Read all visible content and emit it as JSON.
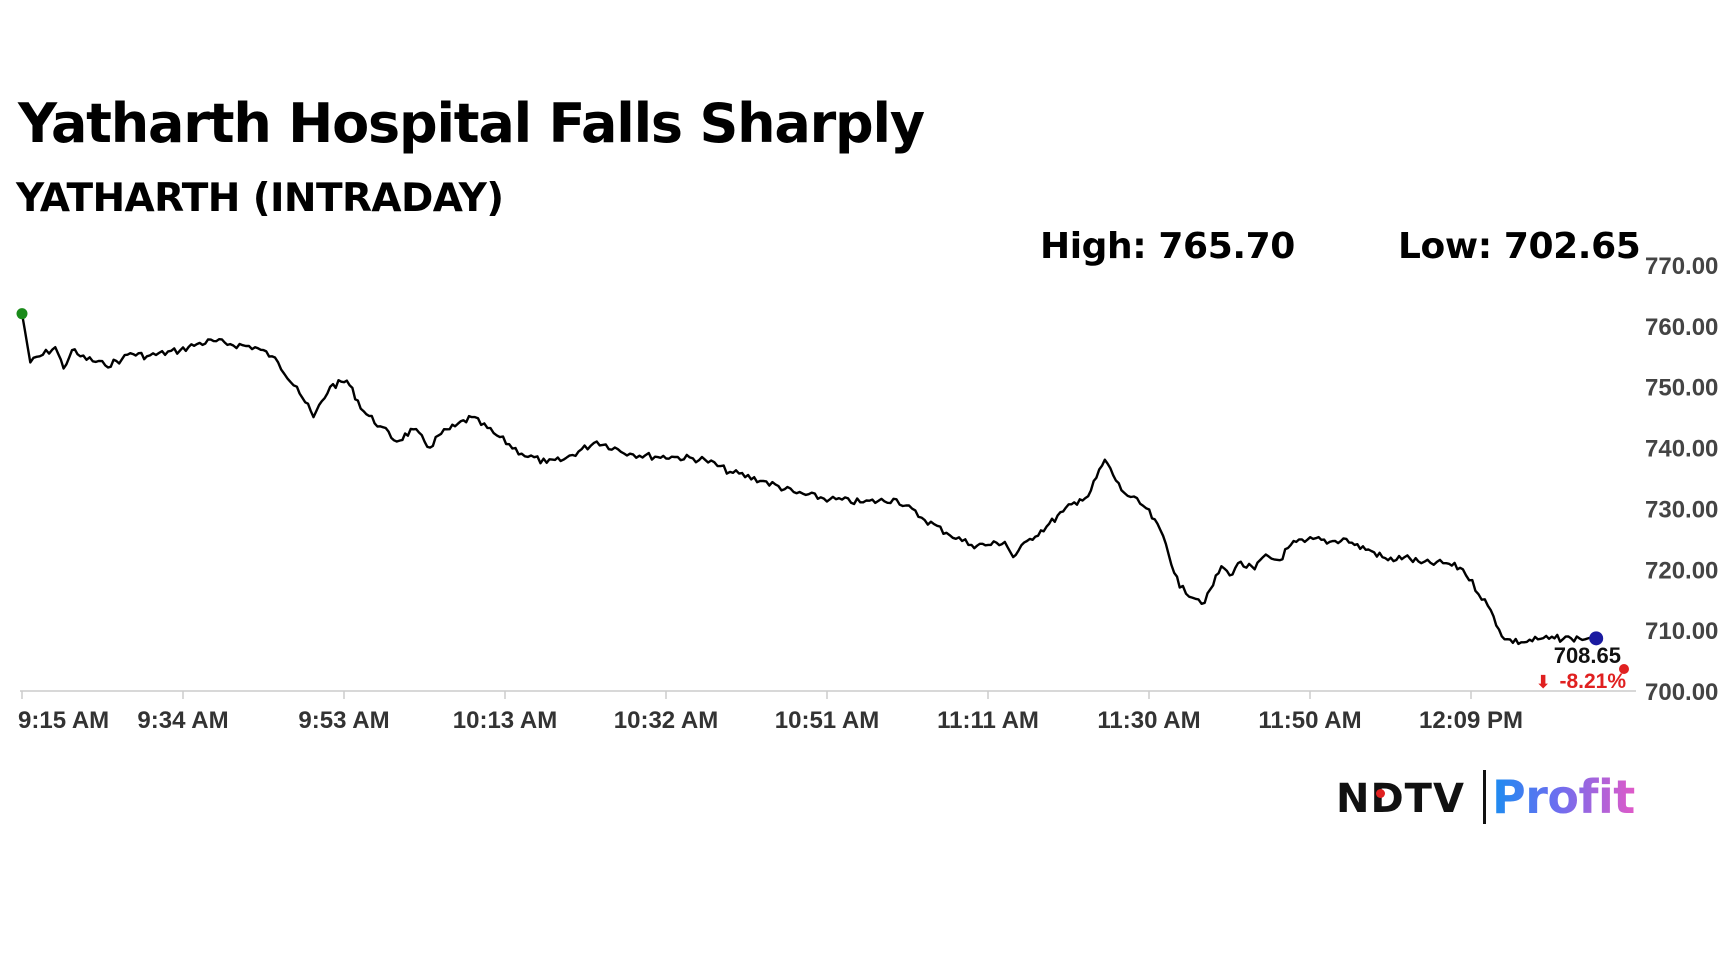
{
  "header": {
    "title": "Yatharth Hospital Falls Sharply",
    "subtitle": "YATHARTH (INTRADAY)"
  },
  "stats": {
    "high_text": "High: 765.70",
    "low_text": "Low: 702.65"
  },
  "colors": {
    "line": "#000000",
    "axis": "#cccccc",
    "start_marker": "#1a8a1a",
    "end_marker": "#1a1aa0",
    "change_down": "#e02020"
  },
  "chart_data": {
    "type": "line",
    "title": "Yatharth Hospital Falls Sharply",
    "subtitle": "YATHARTH (INTRADAY)",
    "xlabel": "",
    "ylabel": "",
    "x_tick_labels": [
      "9:15 AM",
      "9:34 AM",
      "9:53 AM",
      "10:13 AM",
      "10:32 AM",
      "10:51 AM",
      "11:11 AM",
      "11:30 AM",
      "11:50 AM",
      "12:09 PM"
    ],
    "y_tick_labels": [
      "700.00",
      "710.00",
      "720.00",
      "730.00",
      "740.00",
      "750.00",
      "760.00",
      "770.00"
    ],
    "ylim": [
      700,
      770
    ],
    "x_range": [
      "9:15 AM",
      "12:24 PM"
    ],
    "grid": false,
    "y_axis_position": "right",
    "series": [
      {
        "x": [
          "9:15",
          "9:16",
          "9:19",
          "9:20",
          "9:21",
          "9:22",
          "9:25",
          "9:27",
          "9:28",
          "9:30",
          "9:34",
          "9:36",
          "9:38",
          "9:40",
          "9:43",
          "9:45",
          "9:48",
          "9:50",
          "9:52",
          "9:54",
          "9:56",
          "9:58",
          "10:00",
          "10:02",
          "10:04",
          "10:05",
          "10:07",
          "10:09",
          "10:12",
          "10:15",
          "10:18",
          "10:20",
          "10:24",
          "10:28",
          "10:31",
          "10:33",
          "10:37",
          "10:40",
          "10:44",
          "10:48",
          "10:52",
          "10:56",
          "11:00",
          "11:03",
          "11:06",
          "11:09",
          "11:11",
          "11:13",
          "11:14",
          "11:16",
          "11:18",
          "11:20",
          "11:22",
          "11:23",
          "11:25",
          "11:27",
          "11:30",
          "11:32",
          "11:34",
          "11:37",
          "11:39",
          "11:40",
          "11:41",
          "11:43",
          "11:44",
          "11:46",
          "11:47",
          "11:48",
          "11:49",
          "11:50",
          "11:52",
          "11:54",
          "11:55",
          "11:57",
          "11:59",
          "12:01",
          "12:03",
          "12:06",
          "12:08",
          "12:11",
          "12:13",
          "12:15",
          "12:17",
          "12:19",
          "12:21",
          "12:22",
          "12:23",
          "12:24"
        ],
        "y": [
          762.0,
          754.0,
          756.5,
          753.0,
          756.0,
          755.0,
          753.5,
          754.5,
          755.5,
          755.0,
          756.0,
          757.0,
          757.5,
          757.0,
          756.5,
          755.0,
          750.0,
          745.0,
          750.0,
          751.0,
          746.0,
          743.5,
          741.0,
          743.0,
          740.0,
          742.0,
          743.5,
          745.0,
          742.0,
          739.0,
          737.5,
          738.0,
          741.0,
          739.0,
          738.5,
          738.5,
          738.0,
          736.0,
          734.5,
          732.5,
          731.5,
          731.0,
          731.5,
          728.5,
          726.0,
          724.0,
          724.0,
          724.5,
          722.0,
          725.0,
          727.0,
          729.5,
          731.5,
          732.0,
          738.0,
          733.0,
          730.0,
          725.5,
          717.0,
          714.5,
          720.5,
          719.0,
          721.0,
          720.0,
          722.0,
          721.5,
          723.5,
          724.5,
          724.5,
          725.0,
          724.5,
          725.0,
          724.0,
          723.0,
          721.5,
          722.0,
          721.0,
          721.0,
          720.0,
          714.0,
          708.5,
          708.0,
          708.5,
          708.65,
          708.65,
          708.65,
          708.65,
          708.65
        ]
      }
    ],
    "high": 765.7,
    "low": 702.65,
    "last_price": 708.65,
    "change_percent": -8.21
  },
  "annotations": {
    "last_price_text": "708.65",
    "change_text": "-8.21%",
    "change_arrow": "⬇"
  },
  "logo": {
    "ndtv_text": "NDTV",
    "profit_text": "Profit"
  }
}
